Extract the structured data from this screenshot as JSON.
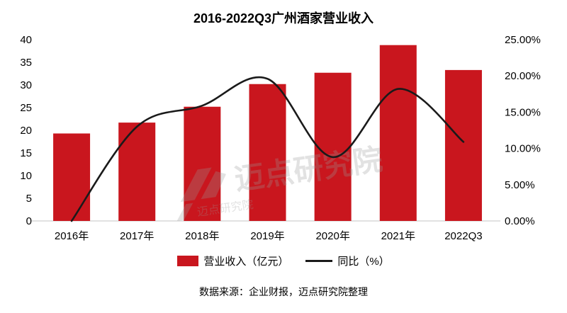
{
  "chart_data": {
    "type": "bar+line",
    "title": "2016-2022Q3广州酒家营业收入",
    "categories": [
      "2016年",
      "2017年",
      "2018年",
      "2019年",
      "2020年",
      "2021年",
      "2022Q3"
    ],
    "series": [
      {
        "name": "营业收入（亿元）",
        "type": "bar",
        "axis": "left",
        "color": "#c9161e",
        "values": [
          19.3,
          21.7,
          25.2,
          30.2,
          32.7,
          38.8,
          33.3
        ]
      },
      {
        "name": "同比（%）",
        "type": "line",
        "axis": "right",
        "color": "#1a1a1a",
        "values": [
          0.0,
          13.0,
          15.9,
          19.6,
          8.8,
          18.2,
          10.9
        ]
      }
    ],
    "left_axis": {
      "min": 0,
      "max": 40,
      "step": 5,
      "ticks": [
        "0",
        "5",
        "10",
        "15",
        "20",
        "25",
        "30",
        "35",
        "40"
      ]
    },
    "right_axis": {
      "min": 0,
      "max": 25,
      "step": 5,
      "ticks": [
        "0.00%",
        "5.00%",
        "10.00%",
        "15.00%",
        "20.00%",
        "25.00%"
      ]
    },
    "grid": false,
    "legend_position": "bottom"
  },
  "legend": {
    "bar_label": "营业收入（亿元）",
    "line_label": "同比（%）"
  },
  "watermark": {
    "text_large": "迈点研究院",
    "text_small": "迈点研究院"
  },
  "footer": {
    "source": "数据来源：企业财报，迈点研究院整理"
  },
  "colors": {
    "bar": "#c9161e",
    "line": "#1a1a1a",
    "axis_line": "#c6c6c6",
    "watermark": "#9a9a9a"
  }
}
